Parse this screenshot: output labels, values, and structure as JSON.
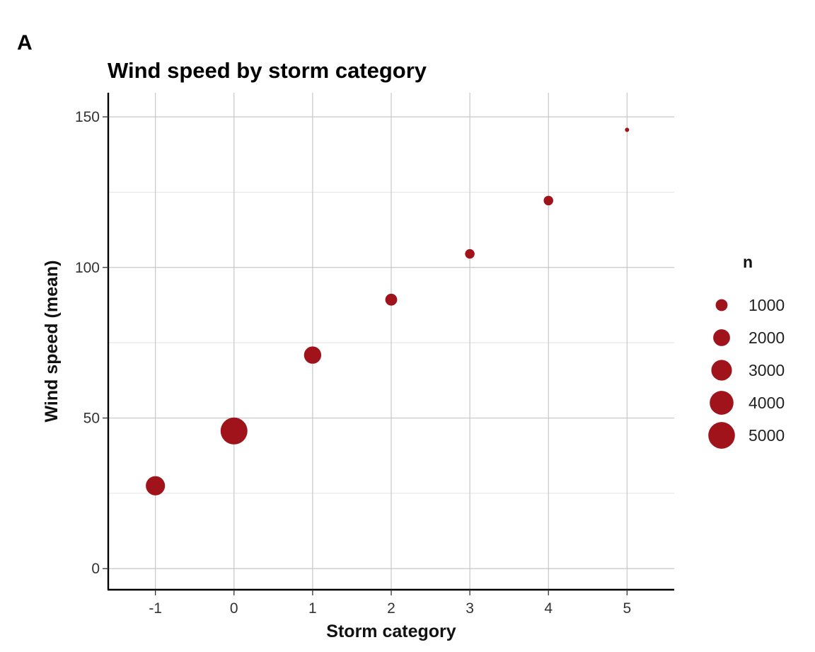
{
  "panel_tag": "A",
  "chart_data": {
    "type": "scatter",
    "title": "Wind speed by storm category",
    "xlabel": "Storm category",
    "ylabel": "Wind speed (mean)",
    "xlim": [
      -1.6,
      5.6
    ],
    "ylim": [
      -7,
      158
    ],
    "x_ticks": [
      -1,
      0,
      1,
      2,
      3,
      4,
      5
    ],
    "y_ticks": [
      0,
      50,
      100,
      150
    ],
    "y_minor_ticks": [
      25,
      75,
      125
    ],
    "grid": true,
    "point_color": "#A0131B",
    "points": [
      {
        "x": -1,
        "y": 27.5,
        "n": 2600
      },
      {
        "x": 0,
        "y": 45.7,
        "n": 5100
      },
      {
        "x": 1,
        "y": 70.9,
        "n": 2100
      },
      {
        "x": 2,
        "y": 89.3,
        "n": 1000
      },
      {
        "x": 3,
        "y": 104.5,
        "n": 640
      },
      {
        "x": 4,
        "y": 122.2,
        "n": 640
      },
      {
        "x": 5,
        "y": 145.7,
        "n": 120
      }
    ],
    "size_scale": {
      "max_n": 5100
    },
    "legend": {
      "title": "n",
      "placement": "right",
      "entries": [
        {
          "label": "1000",
          "n": 1000
        },
        {
          "label": "2000",
          "n": 2000
        },
        {
          "label": "3000",
          "n": 3000
        },
        {
          "label": "4000",
          "n": 4000
        },
        {
          "label": "5000",
          "n": 5000
        }
      ]
    }
  }
}
